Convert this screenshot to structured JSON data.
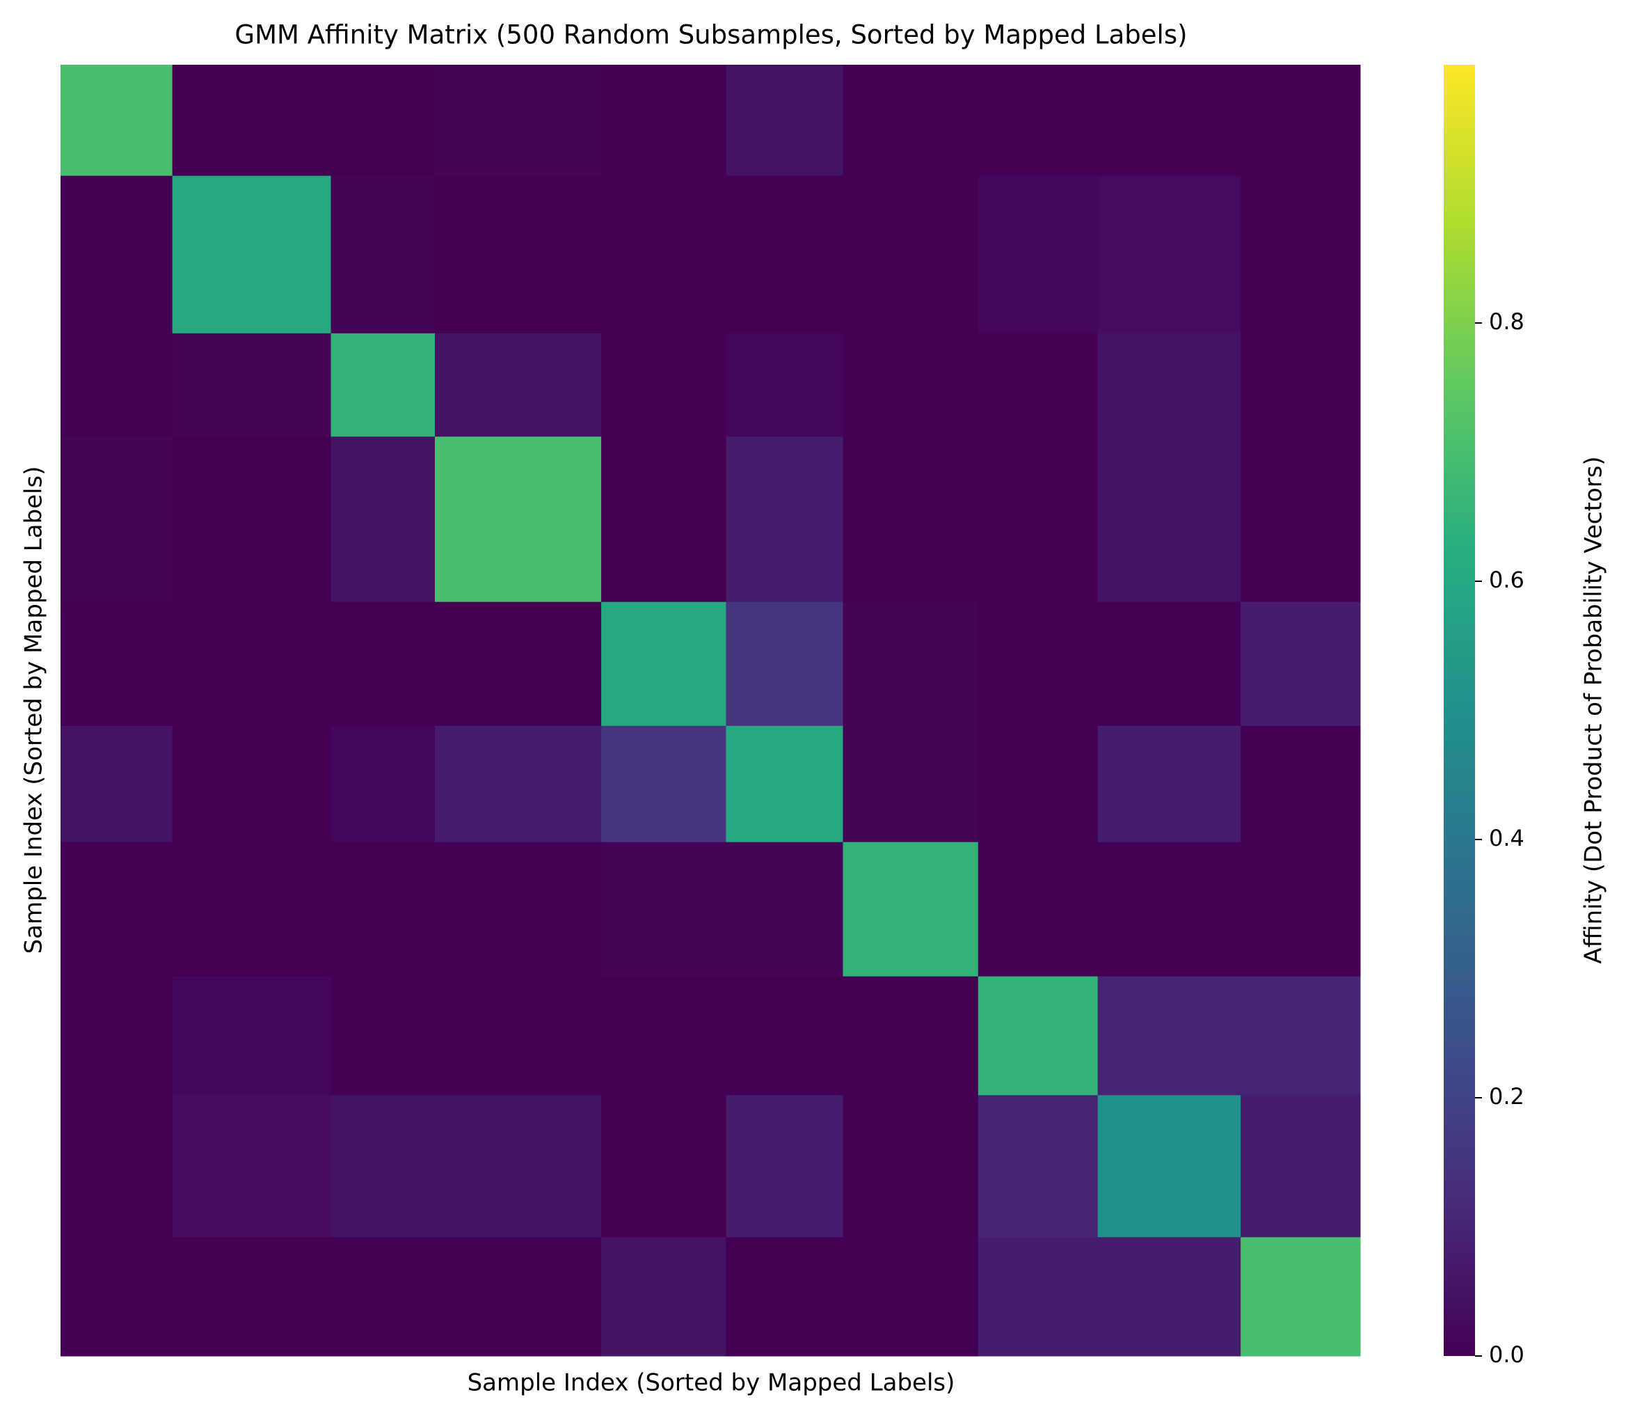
{
  "chart_data": {
    "type": "heatmap",
    "title": "GMM Affinity Matrix (500 Random Subsamples, Sorted by Mapped Labels)",
    "xlabel": "Sample Index (Sorted by Mapped Labels)",
    "ylabel": "Sample Index (Sorted by Mapped Labels)",
    "colorbar_label": "Affinity (Dot Product of Probability Vectors)",
    "colormap": "viridis",
    "bins": [
      0,
      43,
      104,
      144,
      208,
      256,
      301,
      353,
      399,
      454,
      500
    ],
    "values": [
      [
        0.7,
        0.0,
        0.0,
        0.01,
        0.0,
        0.05,
        0.0,
        0.0,
        0.0,
        0.0
      ],
      [
        0.0,
        0.6,
        0.01,
        0.0,
        0.0,
        0.0,
        0.0,
        0.02,
        0.03,
        0.0
      ],
      [
        0.0,
        0.01,
        0.65,
        0.05,
        0.0,
        0.02,
        0.0,
        0.0,
        0.05,
        0.0
      ],
      [
        0.01,
        0.0,
        0.05,
        0.7,
        0.0,
        0.08,
        0.0,
        0.0,
        0.05,
        0.0
      ],
      [
        0.0,
        0.0,
        0.0,
        0.0,
        0.6,
        0.15,
        0.01,
        0.0,
        0.0,
        0.08
      ],
      [
        0.05,
        0.0,
        0.02,
        0.08,
        0.15,
        0.6,
        0.01,
        0.0,
        0.08,
        0.0
      ],
      [
        0.0,
        0.0,
        0.0,
        0.0,
        0.01,
        0.01,
        0.65,
        0.0,
        0.0,
        0.0
      ],
      [
        0.0,
        0.02,
        0.0,
        0.0,
        0.0,
        0.0,
        0.0,
        0.65,
        0.1,
        0.1
      ],
      [
        0.0,
        0.03,
        0.05,
        0.05,
        0.0,
        0.08,
        0.0,
        0.1,
        0.5,
        0.08
      ],
      [
        0.0,
        0.0,
        0.0,
        0.0,
        0.05,
        0.0,
        0.0,
        0.08,
        0.08,
        0.7
      ]
    ],
    "clim": [
      0,
      1
    ],
    "cticks": [
      {
        "value": 0,
        "label": "0.0"
      },
      0.2,
      0.4,
      0.6,
      0.8
    ]
  }
}
